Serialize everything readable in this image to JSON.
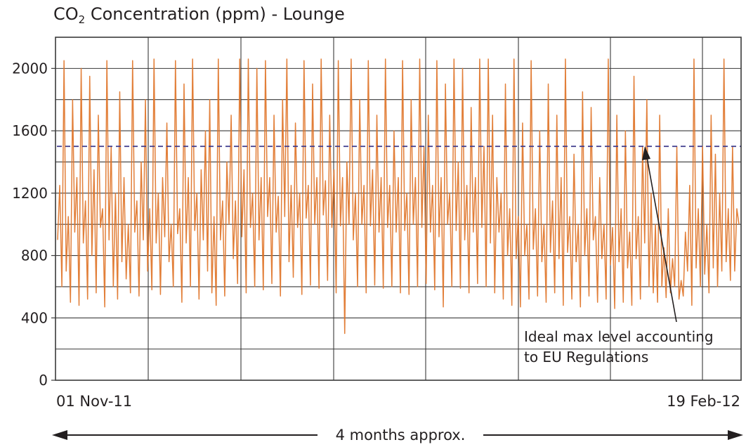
{
  "title": {
    "prefix": "CO",
    "subscript": "2",
    "rest": " Concentration (ppm) - Lounge"
  },
  "colors": {
    "series": "#e07428",
    "reference_line": "#3d3a8c",
    "grid": "#3a3a3a",
    "text": "#231f20"
  },
  "chart_data": {
    "type": "line",
    "title": "CO2 Concentration (ppm) - Lounge",
    "xlabel": "",
    "ylabel": "",
    "x_start_label": "01 Nov-11",
    "x_end_label": "19 Feb-12",
    "ylim": [
      0,
      2200
    ],
    "yticks": [
      0,
      400,
      800,
      1200,
      1600,
      2000
    ],
    "grid": true,
    "reference_line": {
      "value": 1500,
      "style": "dashed"
    },
    "annotation": {
      "lines": [
        "Ideal max level accounting",
        "to EU Regulations"
      ]
    },
    "duration_label": "4 months approx.",
    "series": [
      {
        "values": [
          900,
          1250,
          600,
          2050,
          700,
          1050,
          500,
          1800,
          950,
          1300,
          480,
          2000,
          880,
          1150,
          520,
          1950,
          800,
          1350,
          560,
          1700,
          980,
          1100,
          470,
          2050,
          900,
          1500,
          600,
          1200,
          520,
          1850,
          760,
          1300,
          650,
          1000,
          560,
          2050,
          950,
          1150,
          540,
          1400,
          900,
          1800,
          700,
          1100,
          580,
          2060,
          880,
          1200,
          550,
          1300,
          920,
          1650,
          760,
          1000,
          600,
          2050,
          940,
          1100,
          500,
          1900,
          880,
          1300,
          600,
          2060,
          960,
          1200,
          520,
          1350,
          900,
          1600,
          700,
          1800,
          560,
          1050,
          480,
          2060,
          900,
          1150,
          540,
          1400,
          1000,
          1700,
          780,
          1150,
          620,
          2060,
          920,
          1350,
          560,
          2060,
          980,
          1200,
          600,
          2000,
          900,
          1300,
          580,
          2050,
          1050,
          1300,
          620,
          1700,
          950,
          1180,
          540,
          1800,
          1050,
          2060,
          760,
          1250,
          660,
          1650,
          980,
          1200,
          550,
          2050,
          1040,
          1250,
          610,
          1900,
          1000,
          1300,
          590,
          2060,
          1060,
          1280,
          640,
          1700,
          980,
          1350,
          560,
          2050,
          990,
          1300,
          300,
          1400,
          1000,
          2060,
          900,
          1200,
          600,
          1800,
          1000,
          1250,
          560,
          2050,
          990,
          1350,
          610,
          1700,
          950,
          1300,
          590,
          2060,
          980,
          1250,
          600,
          1600,
          950,
          1300,
          560,
          2050,
          960,
          1200,
          550,
          1800,
          1000,
          1300,
          600,
          2060,
          980,
          1500,
          620,
          1700,
          950,
          1250,
          580,
          2050,
          920,
          1300,
          470,
          1900,
          1000,
          1200,
          600,
          2060,
          960,
          1400,
          590,
          2000,
          900,
          1250,
          560,
          1750,
          950,
          1300,
          620,
          2060,
          980,
          1500,
          600,
          2060,
          880,
          1700,
          560,
          1300,
          950,
          1200,
          520,
          1900,
          800,
          1100,
          480,
          2060,
          780,
          1050,
          470,
          1650,
          800,
          1000,
          520,
          2050,
          840,
          1100,
          540,
          1600,
          760,
          1000,
          500,
          1900,
          820,
          1150,
          560,
          1700,
          780,
          1300,
          480,
          2060,
          820,
          1050,
          520,
          1450,
          760,
          1000,
          470,
          1850,
          800,
          1100,
          540,
          1750,
          900,
          1050,
          500,
          1300,
          780,
          1000,
          520,
          2060,
          740,
          980,
          460,
          1700,
          760,
          1100,
          500,
          1600,
          720,
          950,
          480,
          1950,
          780,
          1050,
          520,
          1500,
          880,
          1800,
          600,
          1200,
          560,
          1000,
          500,
          1700,
          600,
          850,
          530,
          1100,
          560,
          780,
          600,
          1500,
          520,
          640,
          540,
          950,
          700,
          1250,
          480,
          2060,
          720,
          1100,
          600,
          1500,
          680,
          1000,
          560,
          1700,
          720,
          1450,
          600,
          1200,
          700,
          2060,
          760,
          1100,
          640,
          1500,
          700,
          1100,
          1000
        ]
      }
    ]
  }
}
